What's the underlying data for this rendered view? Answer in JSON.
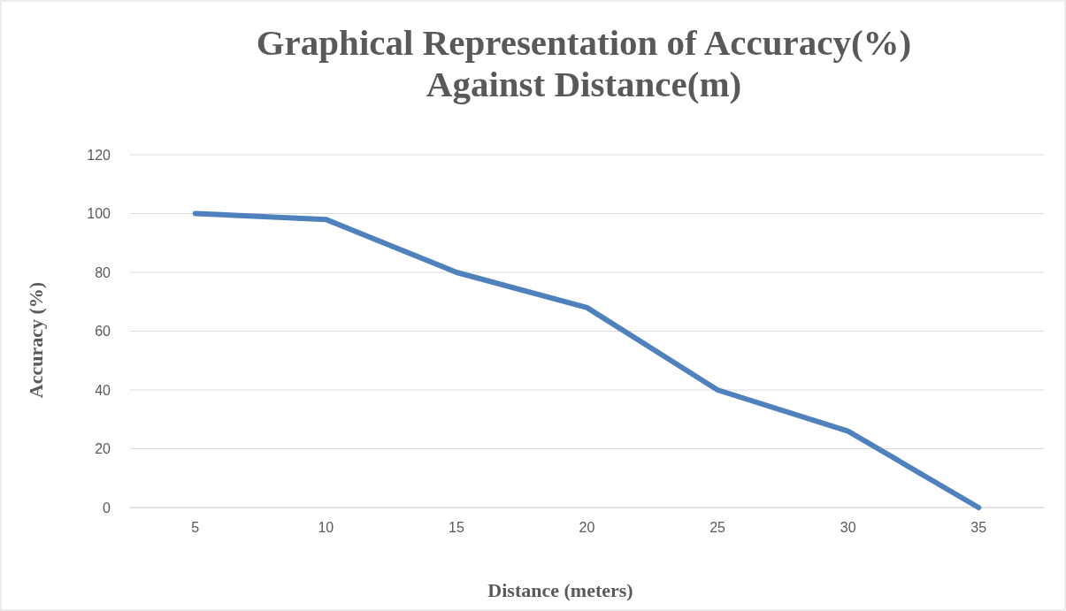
{
  "chart_data": {
    "type": "line",
    "title": "Graphical Representation of Accuracy(%)\nAgainst Distance(m)",
    "xlabel": "Distance (meters)",
    "ylabel": "Accuracy (%)",
    "categories": [
      "5",
      "10",
      "15",
      "20",
      "25",
      "30",
      "35"
    ],
    "series": [
      {
        "color": "#4f81bd",
        "values": [
          100,
          98,
          80,
          68,
          40,
          26,
          0
        ]
      }
    ],
    "ylim": [
      0,
      120
    ],
    "yticks": [
      0,
      20,
      40,
      60,
      80,
      100,
      120
    ],
    "grid": "y",
    "marker": "none",
    "line_style": "solid"
  }
}
